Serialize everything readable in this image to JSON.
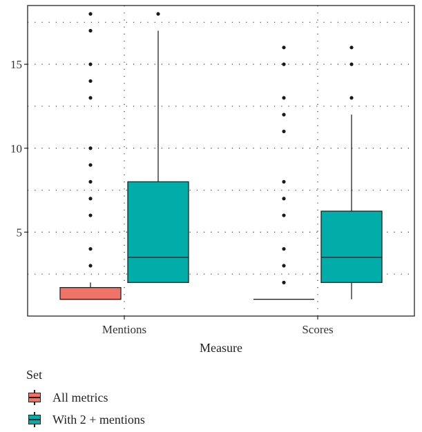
{
  "chart_data": {
    "type": "boxplot",
    "title": "",
    "xlabel": "Measure",
    "ylabel": "",
    "categories": [
      "Mentions",
      "Scores"
    ],
    "ylim": [
      0,
      18.5
    ],
    "yticks": [
      5,
      10,
      15
    ],
    "grid": "dotted",
    "legend": {
      "title": "Set",
      "placement": "bottom-left",
      "entries": [
        "All metrics",
        "With 2 + mentions"
      ]
    },
    "series": [
      {
        "name": "All metrics",
        "color": "#F07368",
        "boxes": [
          {
            "category": "Mentions",
            "lower_whisker": 1,
            "q1": 1,
            "median": 1,
            "q3": 1.7,
            "upper_whisker": 2,
            "outliers": [
              3,
              4,
              6,
              7,
              8,
              9,
              10,
              13,
              14,
              15,
              17,
              18
            ]
          },
          {
            "category": "Scores",
            "lower_whisker": 1,
            "q1": 1,
            "median": 1,
            "q3": 1,
            "upper_whisker": 1,
            "outliers": [
              2,
              3,
              4,
              6,
              7,
              8,
              11,
              12,
              13,
              15,
              16
            ]
          }
        ]
      },
      {
        "name": "With 2 + mentions",
        "color": "#00ADA9",
        "boxes": [
          {
            "category": "Mentions",
            "lower_whisker": 2,
            "q1": 2,
            "median": 3.5,
            "q3": 8,
            "upper_whisker": 17,
            "outliers": [
              18
            ]
          },
          {
            "category": "Scores",
            "lower_whisker": 1,
            "q1": 2,
            "median": 3.5,
            "q3": 6.25,
            "upper_whisker": 12,
            "outliers": [
              13,
              15,
              16
            ]
          }
        ]
      }
    ]
  }
}
